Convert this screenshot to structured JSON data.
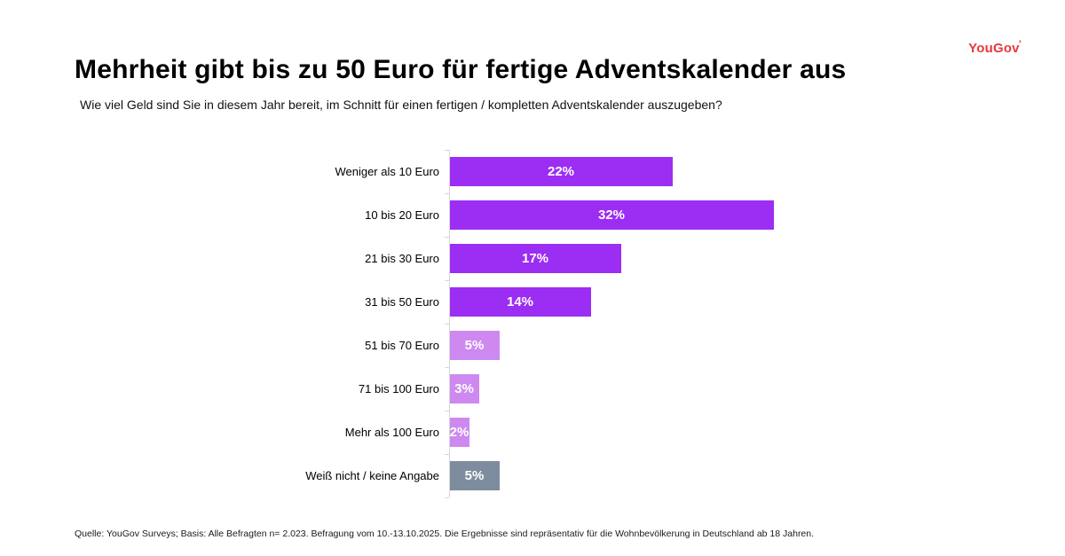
{
  "header": {
    "title": "Mehrheit gibt bis zu 50 Euro für fertige Adventskalender aus",
    "question": "Wie viel Geld sind Sie in diesem Jahr bereit, im Schnitt für einen fertigen / kompletten Adventskalender auszugeben?"
  },
  "logo": {
    "text": "YouGov",
    "mark": "’",
    "color": "#E6393F"
  },
  "chart_data": {
    "type": "bar",
    "orientation": "horizontal",
    "title": "Mehrheit gibt bis zu 50 Euro für fertige Adventskalender aus",
    "xlabel": "",
    "ylabel": "",
    "xlim": [
      0,
      32
    ],
    "unit": "%",
    "grid": false,
    "legend": false,
    "categories": [
      "Weniger als 10 Euro",
      "10 bis 20 Euro",
      "21 bis 30 Euro",
      "31 bis 50 Euro",
      "51 bis 70 Euro",
      "71 bis 100 Euro",
      "Mehr als 100 Euro",
      "Weiß nicht / keine Angabe"
    ],
    "values": [
      22,
      32,
      17,
      14,
      5,
      3,
      2,
      5
    ],
    "value_labels": [
      "22%",
      "32%",
      "17%",
      "14%",
      "5%",
      "3%",
      "2%",
      "5%"
    ],
    "colors": [
      "#9C2DF3",
      "#9C2DF3",
      "#9C2DF3",
      "#9C2DF3",
      "#CD89F0",
      "#CD89F0",
      "#CD89F0",
      "#7E8CA0"
    ],
    "value_label_color": "#FFFFFF",
    "axis_color": "#D8D8D8"
  },
  "footer": {
    "source": "Quelle: YouGov Surveys; Basis: Alle Befragten n= 2.023. Befragung vom 10.-13.10.2025. Die Ergebnisse sind repräsentativ für die Wohnbevölkerung in Deutschland ab 18 Jahren."
  }
}
